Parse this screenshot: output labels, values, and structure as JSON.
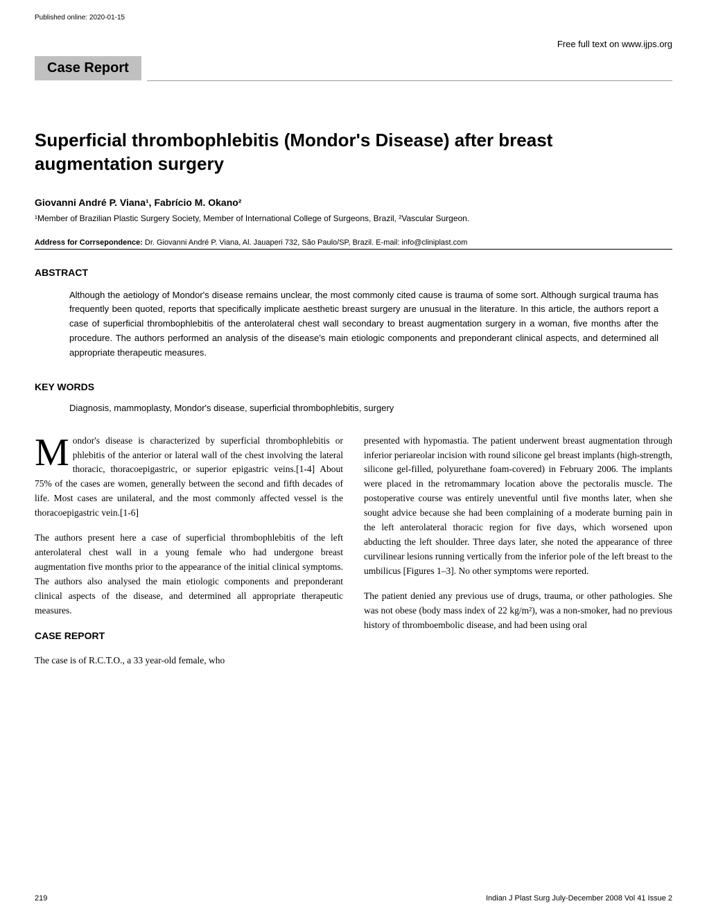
{
  "header": {
    "publishedOnline": "Published online: 2020-01-15",
    "freeText": "Free full text on www.ijps.org"
  },
  "labels": {
    "caseReportBox": "Case Report",
    "abstractHeading": "ABSTRACT",
    "keywordsHeading": "KEY WORDS",
    "caseReportHeading": "CASE REPORT",
    "correspondenceLabel": "Address for Corrsepondence:"
  },
  "article": {
    "title": "Superficial thrombophlebitis (Mondor's Disease) after breast augmentation surgery",
    "authors": "Giovanni André P. Viana¹, Fabrício M. Okano²",
    "affiliations": "¹Member of Brazilian Plastic Surgery Society, Member of International College of Surgeons, Brazil, ²Vascular Surgeon.",
    "correspondence": " Dr. Giovanni André P. Viana, Al. Jauaperi 732, São Paulo/SP, Brazil. E-mail: info@cliniplast.com",
    "abstract": "Although the aetiology of Mondor's disease remains unclear, the most commonly cited cause is trauma of some sort. Although surgical trauma has frequently been quoted, reports that specifically implicate aesthetic breast surgery are unusual in the literature. In this article, the authors report a case of superficial thrombophlebitis of the anterolateral chest wall secondary to breast augmentation surgery in a woman, five months after the procedure. The authors performed an analysis of the disease's main etiologic components and preponderant clinical aspects, and determined all appropriate therapeutic measures.",
    "keywords": "Diagnosis, mammoplasty, Mondor's disease, superficial thrombophlebitis, surgery"
  },
  "body": {
    "dropCap": "M",
    "para1": "ondor's disease is characterized by superficial thrombophlebitis or phlebitis of the anterior or lateral wall of the chest involving the lateral thoracic, thoracoepigastric, or superior epigastric veins.[1-4] About 75% of the cases are women, generally between the second and fifth decades of life. Most cases are unilateral, and the most commonly affected vessel is the thoracoepigastric vein.[1-6]",
    "para2": "The authors present here a case of superficial thrombophlebitis of the left anterolateral chest wall in a young female who had undergone breast augmentation five months prior to the appearance of the initial clinical symptoms. The authors also analysed the main etiologic components and preponderant clinical aspects of the disease, and determined all appropriate therapeutic measures.",
    "para3": "The case is of R.C.T.O., a 33 year-old female, who",
    "para4": "presented with hypomastia. The patient underwent breast augmentation through inferior periareolar incision with round silicone gel breast implants (high-strength, silicone gel-filled, polyurethane foam-covered) in February 2006. The implants were placed in the retromammary location above the pectoralis muscle. The postoperative course was entirely uneventful until five months later, when she sought advice because she had been complaining of a moderate burning pain in the left anterolateral thoracic region for five days, which worsened upon abducting the left shoulder. Three days later, she noted the appearance of three curvilinear lesions running vertically from the inferior pole of the left breast to the umbilicus [Figures 1–3]. No other symptoms were reported.",
    "para5": "The patient denied any previous use of drugs, trauma, or other pathologies. She was not obese (body mass index of 22 kg/m²), was a non-smoker, had no previous history of thromboembolic disease, and had been using oral"
  },
  "footer": {
    "pageNumber": "219",
    "journal": "Indian J Plast Surg July-December 2008 Vol 41 Issue 2"
  }
}
